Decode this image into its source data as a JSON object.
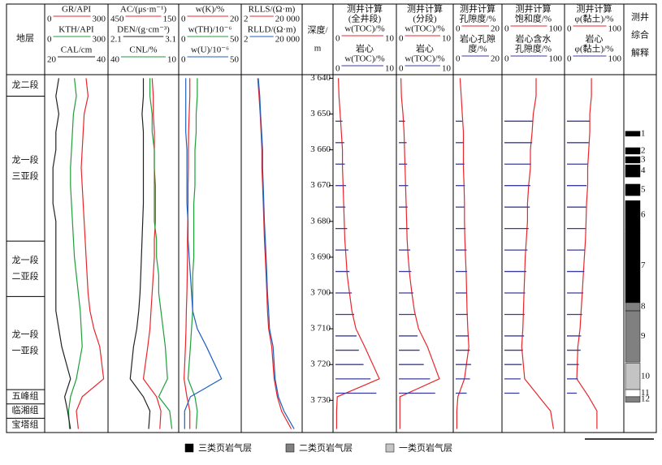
{
  "strata": {
    "header": "地层",
    "units": [
      {
        "lines": [
          "龙二段"
        ],
        "top": 3639,
        "bottom": 3645
      },
      {
        "lines": [
          "龙一段",
          "三亚段"
        ],
        "top": 3645,
        "bottom": 3685.5
      },
      {
        "lines": [
          "龙一段",
          "二亚段"
        ],
        "top": 3685.5,
        "bottom": 3701
      },
      {
        "lines": [
          "龙一段",
          "一亚段"
        ],
        "top": 3701,
        "bottom": 3727
      },
      {
        "lines": [
          "五峰组"
        ],
        "top": 3727,
        "bottom": 3731
      },
      {
        "lines": [
          "临湘组"
        ],
        "top": 3731,
        "bottom": 3735
      },
      {
        "lines": [
          "宝塔组"
        ],
        "top": 3735,
        "bottom": 3739
      }
    ]
  },
  "depth": {
    "header_lines": [
      "深度/",
      "m"
    ],
    "range": [
      3639,
      3739
    ],
    "ticks": [
      {
        "value": 3640,
        "label": "3 640"
      },
      {
        "value": 3650,
        "label": "3 650"
      },
      {
        "value": 3660,
        "label": "3 660"
      },
      {
        "value": 3670,
        "label": "3 670"
      },
      {
        "value": 3680,
        "label": "3 680"
      },
      {
        "value": 3690,
        "label": "3 690"
      },
      {
        "value": 3700,
        "label": "3 700"
      },
      {
        "value": 3710,
        "label": "3 710"
      },
      {
        "value": 3720,
        "label": "3 720"
      },
      {
        "value": 3730,
        "label": "3 730"
      }
    ]
  },
  "sample_depths": [
    3640,
    3645,
    3650,
    3655,
    3660,
    3665,
    3670,
    3675,
    3680,
    3685,
    3690,
    3695,
    3700,
    3705,
    3710,
    3715,
    3724,
    3729,
    3733,
    3738
  ],
  "core_depths": [
    3652,
    3658,
    3664,
    3670,
    3676,
    3682,
    3688,
    3694,
    3700,
    3706,
    3712,
    3716,
    3720,
    3724,
    3728
  ],
  "tracks": [
    {
      "curves": [
        {
          "label_lines": [
            "GR/API"
          ],
          "color": "#e8262b",
          "scale": [
            0,
            300
          ],
          "values": [
            200,
            210,
            190,
            185,
            180,
            175,
            180,
            185,
            190,
            195,
            200,
            205,
            210,
            220,
            240,
            270,
            290,
            180,
            150,
            160
          ]
        },
        {
          "label_lines": [
            "KTH/API"
          ],
          "color": "#1f9e3a",
          "scale": [
            0,
            300
          ],
          "values": [
            140,
            150,
            135,
            130,
            125,
            120,
            120,
            125,
            130,
            135,
            140,
            150,
            160,
            170,
            175,
            180,
            150,
            120,
            110,
            115
          ]
        },
        {
          "label_lines": [
            "CAL/cm"
          ],
          "color": "#222222",
          "scale": [
            20,
            40
          ],
          "values": [
            24,
            23,
            24,
            23,
            23,
            22,
            22,
            22,
            23,
            23,
            23,
            23,
            23,
            23,
            24,
            25,
            28,
            26,
            27,
            28
          ]
        }
      ]
    },
    {
      "curves": [
        {
          "label_lines": [
            "AC/(μs·m⁻¹)"
          ],
          "color": "#e8262b",
          "scale": [
            450,
            150
          ],
          "values": [
            260,
            255,
            255,
            250,
            250,
            250,
            245,
            245,
            245,
            250,
            250,
            255,
            260,
            265,
            270,
            280,
            300,
            240,
            220,
            225
          ]
        },
        {
          "label_lines": [
            "DEN/(g·cm⁻³)"
          ],
          "color": "#222222",
          "scale": [
            2.1,
            3.1
          ],
          "values": [
            2.6,
            2.6,
            2.58,
            2.6,
            2.6,
            2.6,
            2.6,
            2.6,
            2.59,
            2.58,
            2.57,
            2.56,
            2.55,
            2.53,
            2.5,
            2.45,
            2.4,
            2.6,
            2.7,
            2.68
          ]
        },
        {
          "label_lines": [
            "CNL/%"
          ],
          "color": "#1f9e3a",
          "scale": [
            40,
            10
          ],
          "values": [
            22,
            22,
            21,
            21,
            20,
            20,
            20,
            20,
            20,
            19,
            19,
            18,
            18,
            17,
            16,
            15,
            14,
            18,
            13,
            12
          ]
        }
      ]
    },
    {
      "curves": [
        {
          "label_lines": [
            "w(K)/%"
          ],
          "color": "#e8262b",
          "scale": [
            0,
            20
          ],
          "values": [
            3,
            3,
            2.8,
            2.6,
            2.5,
            2.5,
            2.4,
            2.4,
            2.3,
            2.2,
            2.2,
            2.1,
            2,
            1.8,
            1.7,
            1.5,
            1,
            2,
            3,
            3
          ]
        },
        {
          "label_lines": [
            "w(TH)/10⁻⁶"
          ],
          "color": "#1f9e3a",
          "scale": [
            0,
            50
          ],
          "values": [
            14,
            14,
            13,
            13,
            12,
            12,
            12,
            11,
            11,
            11,
            11,
            10,
            10,
            10,
            9,
            8,
            6,
            12,
            14,
            13
          ]
        },
        {
          "label_lines": [
            "w(U)/10⁻⁶"
          ],
          "color": "#1f5fbf",
          "scale": [
            0,
            50
          ],
          "values": [
            4,
            4,
            4,
            4,
            5,
            5,
            5,
            5,
            6,
            6,
            7,
            8,
            9,
            10,
            14,
            22,
            35,
            8,
            3,
            3
          ]
        }
      ]
    },
    {
      "log": true,
      "curves": [
        {
          "label_lines": [
            "RLLS/(Ω·m)"
          ],
          "color": "#e8262b",
          "scale": [
            2,
            {
              "value": 20000,
              "label": "20 000"
            }
          ],
          "values": [
            20,
            25,
            30,
            35,
            40,
            40,
            45,
            50,
            55,
            60,
            70,
            80,
            90,
            100,
            120,
            200,
            300,
            500,
            1000,
            5000
          ]
        },
        {
          "label_lines": [
            "RLLD/(Ω·m)"
          ],
          "color": "#1f5fbf",
          "scale": [
            2,
            {
              "value": 20000,
              "label": "20 000"
            }
          ],
          "values": [
            22,
            28,
            32,
            38,
            45,
            45,
            50,
            55,
            60,
            70,
            80,
            90,
            100,
            120,
            140,
            250,
            350,
            600,
            1500,
            8000
          ]
        }
      ]
    },
    {
      "curves": [
        {
          "label_lines": [
            "测井计算",
            "(全井段)",
            "w(TOC)/%"
          ],
          "color": "#e8262b",
          "scale": [
            0,
            10
          ],
          "values": [
            0.5,
            0.6,
            0.8,
            1.0,
            1.2,
            1.2,
            1.3,
            1.4,
            1.5,
            1.6,
            1.8,
            2.0,
            2.4,
            2.8,
            3.5,
            5.0,
            7.5,
            0.3,
            0.2,
            0.2
          ]
        },
        {
          "label_lines": [
            "岩心",
            "w(TOC)/%"
          ],
          "color": "#3b3b9e",
          "scale": [
            0,
            10
          ],
          "core": [
            1.2,
            1.5,
            1.6,
            1.8,
            1.7,
            2,
            2.2,
            2.4,
            2.8,
            3.2,
            3.6,
            4.0,
            4.8,
            6.0,
            7.0
          ]
        }
      ]
    },
    {
      "curves": [
        {
          "label_lines": [
            "测井计算",
            "(分段)",
            "w(TOC)/%"
          ],
          "color": "#e8262b",
          "scale": [
            0,
            10
          ],
          "values": [
            0.4,
            0.5,
            0.8,
            1,
            1.1,
            1.2,
            1.3,
            1.4,
            1.5,
            1.6,
            1.8,
            2.1,
            2.5,
            3,
            3.8,
            5.5,
            7.8,
            0.2,
            0.2,
            0.2
          ]
        },
        {
          "label_lines": [
            "岩心",
            "w(TOC)/%"
          ],
          "color": "#3b3b9e",
          "scale": [
            0,
            10
          ],
          "core": [
            1.2,
            1.5,
            1.6,
            1.8,
            1.7,
            2,
            2.2,
            2.4,
            2.8,
            3.2,
            3.6,
            4.0,
            4.8,
            6.0,
            7.0
          ]
        }
      ]
    },
    {
      "curves": [
        {
          "label_lines": [
            "测井计算",
            "孔隙度/%"
          ],
          "color": "#e8262b",
          "scale": [
            0,
            20
          ],
          "values": [
            2,
            2.5,
            3,
            3.5,
            3.5,
            3.5,
            3.8,
            4,
            4,
            4.2,
            4.5,
            4.8,
            5,
            5.2,
            5.5,
            6,
            4,
            1,
            0.5,
            0.5
          ]
        },
        {
          "label_lines": [
            "岩心孔隙",
            "度/%"
          ],
          "color": "#3b3b9e",
          "scale": [
            0,
            20
          ],
          "core": [
            3,
            3.5,
            4,
            4.2,
            4,
            4.5,
            5,
            5.2,
            5,
            5.5,
            6,
            6.5,
            7,
            6.5,
            5
          ]
        }
      ]
    },
    {
      "curves": [
        {
          "label_lines": [
            "测井计算",
            "饱和度/%"
          ],
          "color": "#e8262b",
          "scale": [
            0,
            100
          ],
          "values": [
            55,
            55,
            50,
            48,
            45,
            45,
            42,
            40,
            40,
            38,
            36,
            35,
            34,
            33,
            32,
            30,
            35,
            60,
            80,
            85
          ]
        },
        {
          "label_lines": [
            "岩心含水",
            "孔隙度/%"
          ],
          "color": "#3b3b9e",
          "scale": [
            0,
            100
          ],
          "core": [
            50,
            48,
            46,
            45,
            44,
            42,
            40,
            38,
            36,
            35,
            34,
            32,
            30,
            28,
            26
          ]
        }
      ]
    },
    {
      "curves": [
        {
          "label_lines": [
            "测井计算",
            "φ(黏土)/%"
          ],
          "color": "#e8262b",
          "scale": [
            0,
            100
          ],
          "values": [
            45,
            45,
            42,
            42,
            40,
            38,
            38,
            36,
            35,
            34,
            32,
            30,
            28,
            26,
            24,
            20,
            18,
            40,
            55,
            55
          ]
        },
        {
          "label_lines": [
            "岩心",
            "φ(黏土)/%"
          ],
          "color": "#3b3b9e",
          "scale": [
            0,
            100
          ],
          "core": [
            42,
            40,
            38,
            36,
            35,
            34,
            33,
            32,
            30,
            28,
            26,
            25,
            22,
            20,
            18
          ]
        }
      ]
    }
  ],
  "interpretation": {
    "header_lines": [
      "测井",
      "综合",
      "解释"
    ],
    "zones": [
      {
        "label": "1",
        "top": 3654.8,
        "bottom": 3656.2,
        "color": "#000000"
      },
      {
        "label": "2",
        "top": 3659.4,
        "bottom": 3661.2,
        "color": "#000000"
      },
      {
        "label": "3",
        "top": 3661.9,
        "bottom": 3663.7,
        "color": "#000000"
      },
      {
        "label": "4",
        "top": 3664.2,
        "bottom": 3667.6,
        "color": "#000000"
      },
      {
        "label": "5",
        "top": 3669.6,
        "bottom": 3672.8,
        "color": "#000000"
      },
      {
        "label": "6",
        "top": 3674.2,
        "bottom": 3682.2,
        "color": "#000000"
      },
      {
        "label": "7",
        "top": 3682.2,
        "bottom": 3702.7,
        "color": "#000000"
      },
      {
        "label": "8",
        "top": 3702.7,
        "bottom": 3705,
        "color": "#808080"
      },
      {
        "label": "9",
        "top": 3705,
        "bottom": 3719.3,
        "color": "#808080"
      },
      {
        "label": "10",
        "top": 3719.6,
        "bottom": 3727,
        "color": "#c4c4c4"
      },
      {
        "label": "11",
        "top": 3727,
        "bottom": 3729,
        "color": "#ffffff"
      },
      {
        "label": "12",
        "top": 3729,
        "bottom": 3730.5,
        "color": "#808080"
      }
    ]
  },
  "legend": [
    {
      "label": "三类页岩气层",
      "color": "#000000"
    },
    {
      "label": "二类页岩气层",
      "color": "#808080"
    },
    {
      "label": "一类页岩气层",
      "color": "#c4c4c4"
    }
  ]
}
